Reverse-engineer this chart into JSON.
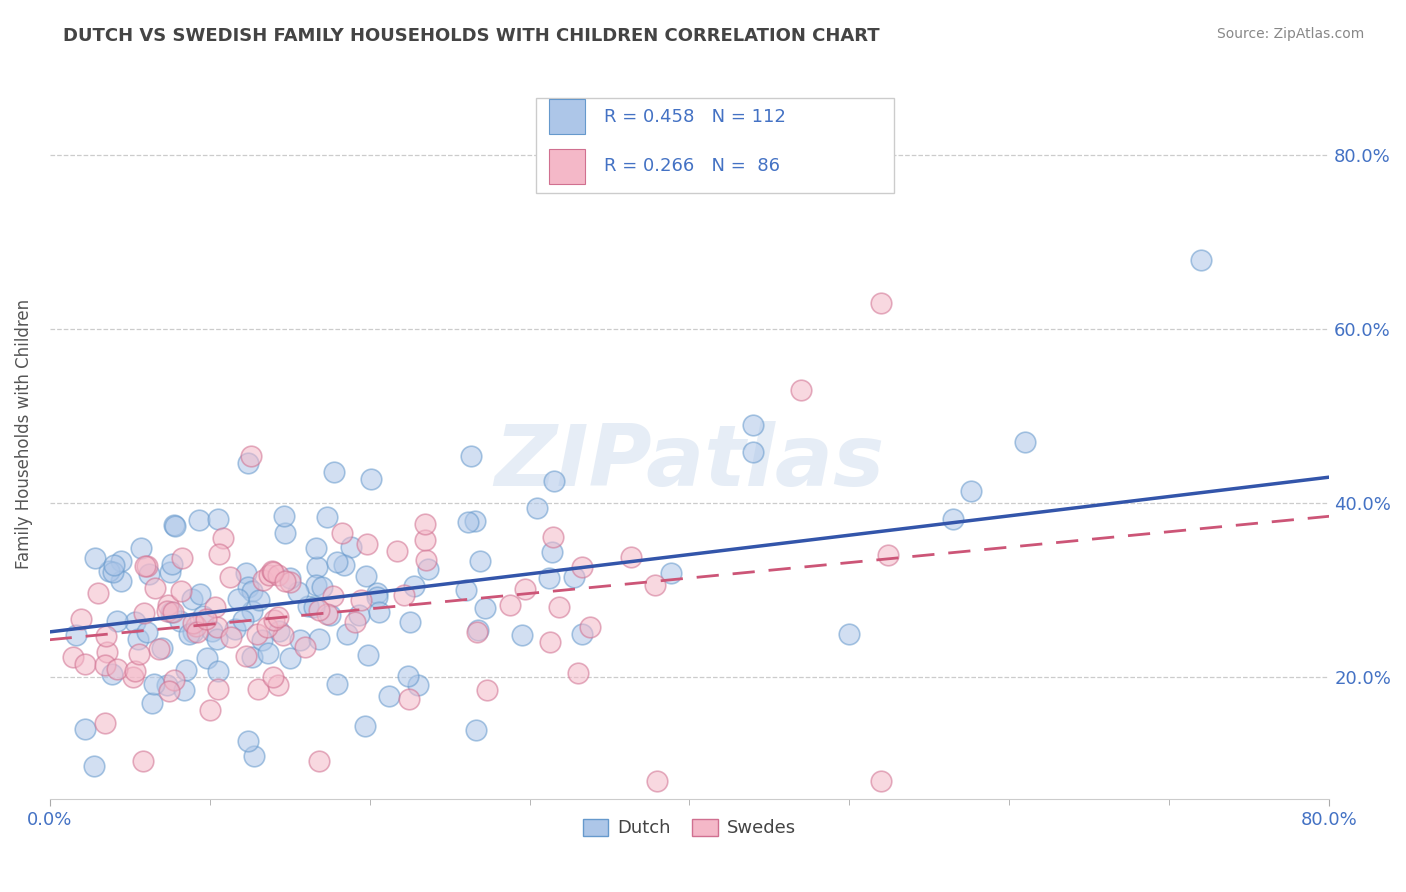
{
  "title": "DUTCH VS SWEDISH FAMILY HOUSEHOLDS WITH CHILDREN CORRELATION CHART",
  "source": "Source: ZipAtlas.com",
  "ylabel": "Family Households with Children",
  "dutch_color": "#adc6e8",
  "dutch_edge_color": "#6699cc",
  "swedes_color": "#f4b8c8",
  "swedes_edge_color": "#d07090",
  "dutch_line_color": "#3355aa",
  "swedes_line_color": "#cc5577",
  "tick_color": "#4472c4",
  "grid_color": "#cccccc",
  "background_color": "#ffffff",
  "xlim": [
    0.0,
    0.8
  ],
  "ylim": [
    0.06,
    0.9
  ],
  "yticks": [
    0.2,
    0.4,
    0.6,
    0.8
  ],
  "ytick_labels": [
    "20.0%",
    "40.0%",
    "60.0%",
    "80.0%"
  ],
  "watermark": "ZIPatlas",
  "dutch_R": 0.458,
  "dutch_N": 112,
  "swedes_R": 0.266,
  "swedes_N": 86,
  "dutch_line_start_y": 0.252,
  "dutch_line_end_y": 0.43,
  "swedes_line_start_y": 0.243,
  "swedes_line_end_y": 0.385
}
